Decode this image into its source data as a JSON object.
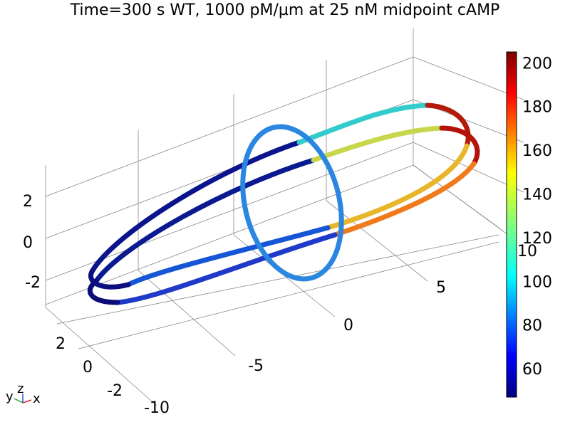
{
  "title": "Time=300 s  WT, 1000 pM/µm at 25 nM midpoint cAMP",
  "chart_data": {
    "type": "3d-surface-tube",
    "title": "Time=300 s  WT, 1000 pM/µm at 25 nM midpoint cAMP",
    "axes": {
      "x_ticks": [
        "-10",
        "-5",
        "0",
        "5",
        "10"
      ],
      "y_ticks": [
        "-2",
        "0",
        "2"
      ],
      "z_ticks": [
        "-2",
        "0",
        "2"
      ]
    },
    "colorbar": {
      "colormap": "jet",
      "min": 47,
      "max": 205,
      "ticks": [
        60,
        80,
        100,
        120,
        140,
        160,
        180,
        200
      ]
    },
    "series": [
      {
        "shape": "ring",
        "orientation": "elongated along x",
        "color_range": [
          50,
          200
        ]
      },
      {
        "shape": "ring",
        "orientation": "elongated along x",
        "color_range": [
          50,
          200
        ]
      },
      {
        "shape": "ring",
        "orientation": "transverse (y-z plane) at x=0",
        "color_value": 88
      }
    ],
    "axis_triad": [
      "y",
      "z",
      "x"
    ]
  }
}
